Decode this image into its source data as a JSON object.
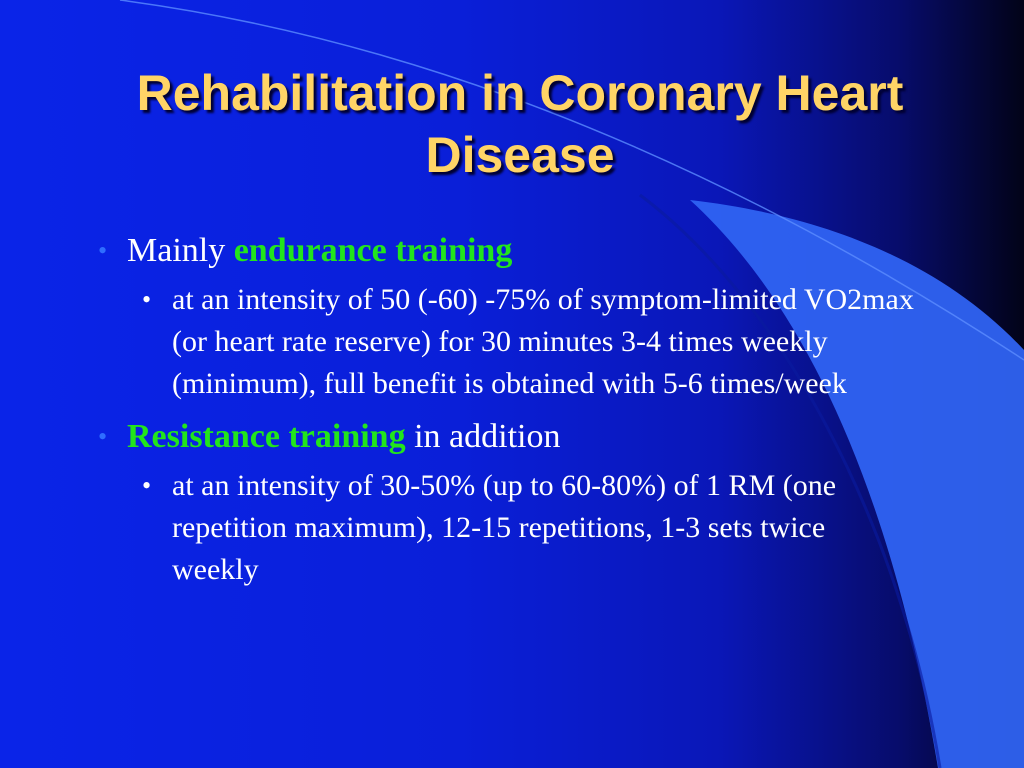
{
  "slide": {
    "title": "Rehabilitation in Coronary Heart Disease",
    "bullets": [
      {
        "prefix": "Mainly ",
        "highlight": "endurance training",
        "suffix": "",
        "sub": "at an intensity of 50 (-60) -75% of symptom-limited VO2max (or heart rate reserve) for 30 minutes 3-4 times weekly (minimum), full benefit is obtained with 5-6 times/week"
      },
      {
        "prefix": "",
        "highlight": "Resistance training",
        "suffix": " in addition",
        "sub": "at an intensity of 30-50% (up to 60-80%) of 1 RM (one repetition maximum), 12-15 repetitions, 1-3 sets twice weekly"
      }
    ],
    "colors": {
      "background": "#0a1fd8",
      "title": "#ffd466",
      "highlight": "#22e51c",
      "bullet_level1": "#2f6dff",
      "decoration": "#2e62f0"
    }
  }
}
